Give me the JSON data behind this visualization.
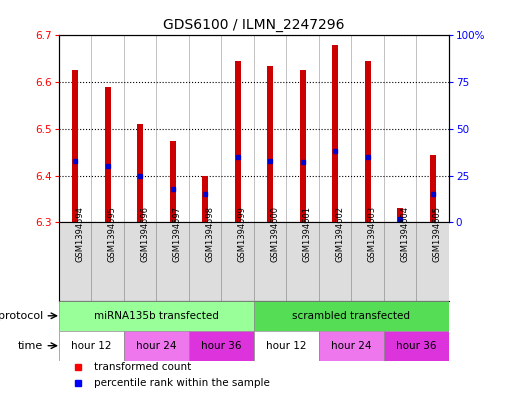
{
  "title": "GDS6100 / ILMN_2247296",
  "samples": [
    "GSM1394594",
    "GSM1394595",
    "GSM1394596",
    "GSM1394597",
    "GSM1394598",
    "GSM1394599",
    "GSM1394600",
    "GSM1394601",
    "GSM1394602",
    "GSM1394603",
    "GSM1394604",
    "GSM1394605"
  ],
  "bar_bottom": 6.3,
  "transformed_counts": [
    6.625,
    6.59,
    6.51,
    6.475,
    6.4,
    6.645,
    6.635,
    6.625,
    6.68,
    6.645,
    6.33,
    6.445
  ],
  "percentile_ranks": [
    33,
    30,
    25,
    18,
    15,
    35,
    33,
    32,
    38,
    35,
    2,
    15
  ],
  "ylim_left": [
    6.3,
    6.7
  ],
  "ylim_right": [
    0,
    100
  ],
  "yticks_left": [
    6.3,
    6.4,
    6.5,
    6.6,
    6.7
  ],
  "yticks_right": [
    0,
    25,
    50,
    75,
    100
  ],
  "bar_color": "#cc0000",
  "dot_color": "#0000cc",
  "bg_color": "#ffffff",
  "protocol_groups": [
    {
      "label": "miRNA135b transfected",
      "start": 0,
      "end": 6,
      "color": "#99ff99"
    },
    {
      "label": "scrambled transfected",
      "start": 6,
      "end": 12,
      "color": "#55dd55"
    }
  ],
  "time_groups": [
    {
      "label": "hour 12",
      "start": 0,
      "end": 2,
      "color": "#ffffff"
    },
    {
      "label": "hour 24",
      "start": 2,
      "end": 4,
      "color": "#ee66ee"
    },
    {
      "label": "hour 36",
      "start": 4,
      "end": 6,
      "color": "#dd22dd"
    },
    {
      "label": "hour 12",
      "start": 6,
      "end": 8,
      "color": "#ffffff"
    },
    {
      "label": "hour 24",
      "start": 8,
      "end": 10,
      "color": "#ee66ee"
    },
    {
      "label": "hour 36",
      "start": 10,
      "end": 12,
      "color": "#dd22dd"
    }
  ]
}
